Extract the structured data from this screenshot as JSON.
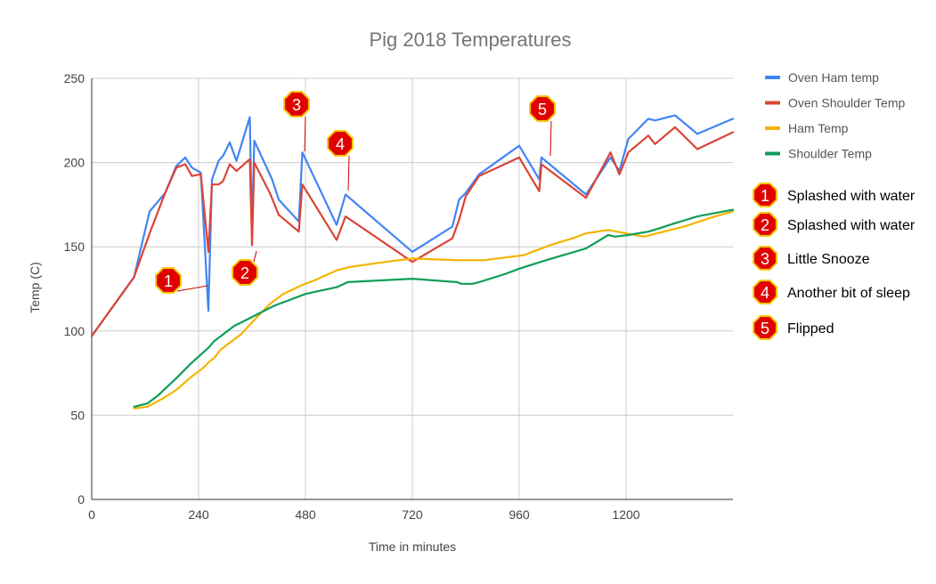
{
  "chart_data": {
    "type": "line",
    "title": "Pig 2018 Temperatures",
    "xlabel": "Time in minutes",
    "ylabel": "Temp (C)",
    "xlim": [
      0,
      1440
    ],
    "ylim": [
      0,
      250
    ],
    "x_ticks": [
      0,
      240,
      480,
      720,
      960,
      1200
    ],
    "y_ticks": [
      0,
      50,
      100,
      150,
      200,
      250
    ],
    "grid": true,
    "legend_position": "right",
    "series": [
      {
        "name": "Oven Ham temp",
        "color": "#4285f4",
        "points": [
          [
            0,
            97
          ],
          [
            95,
            132
          ],
          [
            130,
            171
          ],
          [
            165,
            182
          ],
          [
            190,
            198
          ],
          [
            210,
            203
          ],
          [
            225,
            197
          ],
          [
            245,
            194
          ],
          [
            262,
            112
          ],
          [
            270,
            190
          ],
          [
            285,
            201
          ],
          [
            295,
            204
          ],
          [
            310,
            212
          ],
          [
            325,
            201
          ],
          [
            355,
            227
          ],
          [
            360,
            158
          ],
          [
            365,
            213
          ],
          [
            405,
            190
          ],
          [
            420,
            178
          ],
          [
            465,
            165
          ],
          [
            473,
            206
          ],
          [
            550,
            163
          ],
          [
            570,
            181
          ],
          [
            720,
            147
          ],
          [
            810,
            162
          ],
          [
            825,
            178
          ],
          [
            840,
            182
          ],
          [
            870,
            193
          ],
          [
            960,
            210
          ],
          [
            1005,
            190
          ],
          [
            1010,
            203
          ],
          [
            1110,
            181
          ],
          [
            1165,
            203
          ],
          [
            1185,
            195
          ],
          [
            1205,
            214
          ],
          [
            1250,
            226
          ],
          [
            1265,
            225
          ],
          [
            1310,
            228
          ],
          [
            1360,
            217
          ],
          [
            1440,
            226
          ]
        ]
      },
      {
        "name": "Oven Shoulder Temp",
        "color": "#db4437",
        "points": [
          [
            0,
            97
          ],
          [
            95,
            132
          ],
          [
            130,
            158
          ],
          [
            165,
            182
          ],
          [
            190,
            197
          ],
          [
            210,
            199
          ],
          [
            225,
            192
          ],
          [
            245,
            193
          ],
          [
            262,
            147
          ],
          [
            270,
            187
          ],
          [
            285,
            187
          ],
          [
            295,
            189
          ],
          [
            310,
            199
          ],
          [
            325,
            195
          ],
          [
            355,
            202
          ],
          [
            360,
            151
          ],
          [
            365,
            200
          ],
          [
            400,
            182
          ],
          [
            420,
            169
          ],
          [
            465,
            159
          ],
          [
            473,
            187
          ],
          [
            550,
            154
          ],
          [
            570,
            168
          ],
          [
            720,
            141
          ],
          [
            810,
            155
          ],
          [
            825,
            166
          ],
          [
            840,
            180
          ],
          [
            870,
            192
          ],
          [
            960,
            203
          ],
          [
            1005,
            183
          ],
          [
            1010,
            199
          ],
          [
            1110,
            179
          ],
          [
            1165,
            206
          ],
          [
            1185,
            193
          ],
          [
            1205,
            206
          ],
          [
            1250,
            216
          ],
          [
            1265,
            211
          ],
          [
            1310,
            221
          ],
          [
            1360,
            208
          ],
          [
            1440,
            218
          ]
        ]
      },
      {
        "name": "Ham Temp",
        "color": "#f4b400",
        "points": [
          [
            95,
            54
          ],
          [
            125,
            55
          ],
          [
            160,
            60
          ],
          [
            190,
            65
          ],
          [
            220,
            72
          ],
          [
            250,
            78
          ],
          [
            265,
            82
          ],
          [
            275,
            84
          ],
          [
            290,
            89
          ],
          [
            310,
            93
          ],
          [
            335,
            98
          ],
          [
            370,
            108
          ],
          [
            400,
            116
          ],
          [
            430,
            122
          ],
          [
            470,
            127
          ],
          [
            500,
            130
          ],
          [
            550,
            136
          ],
          [
            580,
            138
          ],
          [
            660,
            141
          ],
          [
            720,
            143
          ],
          [
            820,
            142
          ],
          [
            880,
            142
          ],
          [
            970,
            145
          ],
          [
            1030,
            151
          ],
          [
            1080,
            155
          ],
          [
            1110,
            158
          ],
          [
            1160,
            160
          ],
          [
            1200,
            158
          ],
          [
            1240,
            156
          ],
          [
            1330,
            162
          ],
          [
            1400,
            168
          ],
          [
            1440,
            171
          ]
        ]
      },
      {
        "name": "Shoulder Temp",
        "color": "#0f9d58",
        "points": [
          [
            95,
            55
          ],
          [
            125,
            57
          ],
          [
            150,
            62
          ],
          [
            170,
            67
          ],
          [
            190,
            72
          ],
          [
            220,
            80
          ],
          [
            245,
            86
          ],
          [
            262,
            90
          ],
          [
            275,
            94
          ],
          [
            295,
            98
          ],
          [
            320,
            103
          ],
          [
            350,
            107
          ],
          [
            380,
            111
          ],
          [
            410,
            115
          ],
          [
            450,
            119
          ],
          [
            480,
            122
          ],
          [
            550,
            126
          ],
          [
            575,
            129
          ],
          [
            720,
            131
          ],
          [
            820,
            129
          ],
          [
            830,
            128
          ],
          [
            855,
            128
          ],
          [
            870,
            129
          ],
          [
            930,
            134
          ],
          [
            960,
            137
          ],
          [
            1020,
            142
          ],
          [
            1110,
            149
          ],
          [
            1160,
            157
          ],
          [
            1175,
            156
          ],
          [
            1205,
            157
          ],
          [
            1250,
            159
          ],
          [
            1275,
            161
          ],
          [
            1310,
            164
          ],
          [
            1360,
            168
          ],
          [
            1440,
            172
          ]
        ]
      }
    ],
    "annotations": [
      {
        "number": "1",
        "text": "Splashed with water",
        "x": 262,
        "y": 124
      },
      {
        "number": "2",
        "text": "Splashed with water",
        "x": 360,
        "y": 146
      },
      {
        "number": "3",
        "text": "Little Snooze",
        "x": 473,
        "y": 205
      },
      {
        "number": "4",
        "text": "Another bit of sleep",
        "x": 570,
        "y": 182
      },
      {
        "number": "5",
        "text": "Flipped",
        "x": 1010,
        "y": 203
      }
    ]
  }
}
